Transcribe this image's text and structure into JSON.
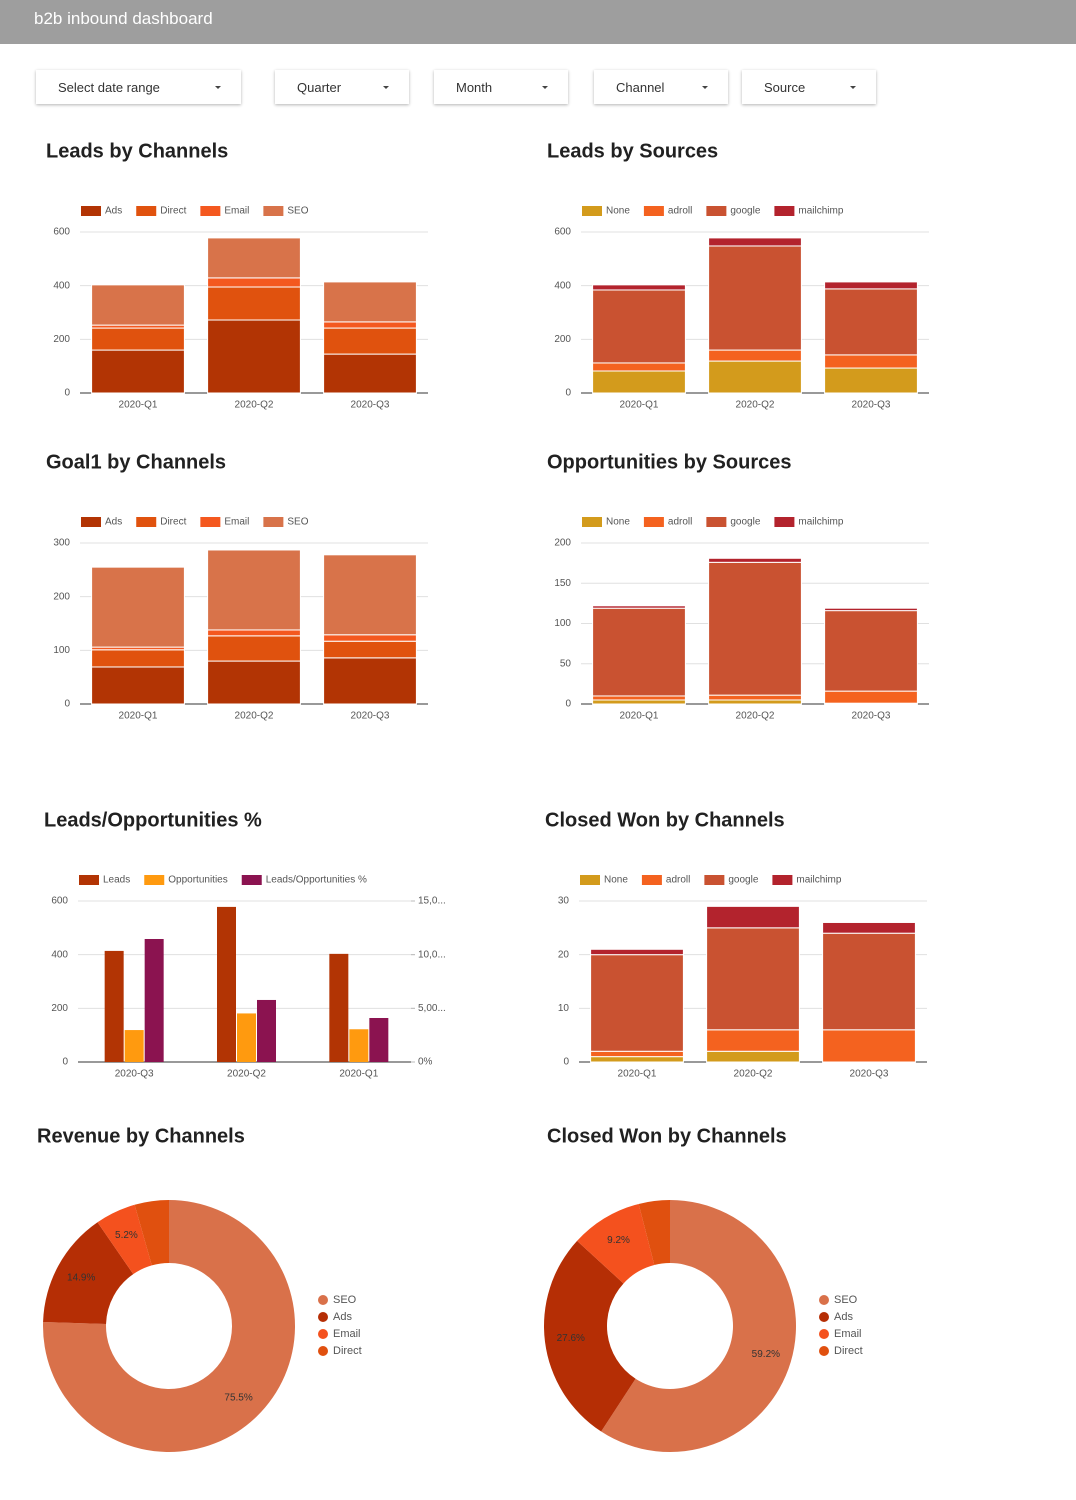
{
  "header": {
    "title": "b2b inbound dashboard"
  },
  "filters": [
    "Select date range",
    "Quarter",
    "Month",
    "Channel",
    "Source"
  ],
  "chart_data": [
    {
      "type": "bar",
      "stacked": true,
      "title": "Leads by Channels",
      "categories": [
        "2020-Q1",
        "2020-Q2",
        "2020-Q3"
      ],
      "series": [
        {
          "name": "Ads",
          "color": "#b23404",
          "values": [
            160,
            272,
            145
          ]
        },
        {
          "name": "Direct",
          "color": "#e0520e",
          "values": [
            82,
            123,
            97
          ]
        },
        {
          "name": "Email",
          "color": "#f4581f",
          "values": [
            11,
            34,
            23
          ]
        },
        {
          "name": "SEO",
          "color": "#d8734a",
          "values": [
            150,
            149,
            149
          ]
        }
      ],
      "ylim": [
        0,
        600
      ],
      "yticks": [
        0,
        200,
        400,
        600
      ],
      "grid": true
    },
    {
      "type": "bar",
      "stacked": true,
      "title": "Leads by Sources",
      "categories": [
        "2020-Q1",
        "2020-Q2",
        "2020-Q3"
      ],
      "series": [
        {
          "name": "None",
          "color": "#d39b1c",
          "values": [
            82,
            119,
            93
          ]
        },
        {
          "name": "adroll",
          "color": "#f4621f",
          "values": [
            30,
            41,
            49
          ]
        },
        {
          "name": "google",
          "color": "#c95231",
          "values": [
            272,
            388,
            246
          ]
        },
        {
          "name": "mailchimp",
          "color": "#b3232d",
          "values": [
            19,
            30,
            26
          ]
        }
      ],
      "ylim": [
        0,
        600
      ],
      "yticks": [
        0,
        200,
        400,
        600
      ],
      "grid": true
    },
    {
      "type": "bar",
      "stacked": true,
      "title": "Goal1 by Channels",
      "categories": [
        "2020-Q1",
        "2020-Q2",
        "2020-Q3"
      ],
      "series": [
        {
          "name": "Ads",
          "color": "#b23404",
          "values": [
            69,
            80,
            86
          ]
        },
        {
          "name": "Direct",
          "color": "#e0520e",
          "values": [
            32,
            47,
            31
          ]
        },
        {
          "name": "Email",
          "color": "#f4581f",
          "values": [
            5,
            11,
            12
          ]
        },
        {
          "name": "SEO",
          "color": "#d8734a",
          "values": [
            149,
            149,
            149
          ]
        }
      ],
      "ylim": [
        0,
        300
      ],
      "yticks": [
        0,
        100,
        200,
        300
      ],
      "grid": true
    },
    {
      "type": "bar",
      "stacked": true,
      "title": "Opportunities by Sources",
      "categories": [
        "2020-Q1",
        "2020-Q2",
        "2020-Q3"
      ],
      "series": [
        {
          "name": "None",
          "color": "#d39b1c",
          "values": [
            5,
            5,
            1
          ]
        },
        {
          "name": "adroll",
          "color": "#f4621f",
          "values": [
            5,
            6,
            15
          ]
        },
        {
          "name": "google",
          "color": "#c95231",
          "values": [
            109,
            165,
            100
          ]
        },
        {
          "name": "mailchimp",
          "color": "#b3232d",
          "values": [
            3,
            5,
            3
          ]
        }
      ],
      "ylim": [
        0,
        200
      ],
      "yticks": [
        0,
        50,
        100,
        150,
        200
      ],
      "grid": true
    },
    {
      "type": "bar",
      "stacked": false,
      "title": "Leads/Opportunities %",
      "categories": [
        "2020-Q3",
        "2020-Q2",
        "2020-Q1"
      ],
      "series": [
        {
          "name": "Leads",
          "color": "#b23404",
          "values": [
            414,
            578,
            403
          ]
        },
        {
          "name": "Opportunities",
          "color": "#ff9a0f",
          "values": [
            119,
            181,
            122
          ]
        },
        {
          "name": "Leads/Opportunities %",
          "color": "#8b1350",
          "values": [
            11460,
            5780,
            4100
          ],
          "axis": "y2"
        }
      ],
      "ylim": [
        0,
        600
      ],
      "yticks": [
        0,
        200,
        400,
        600
      ],
      "y2lim": [
        0,
        15000
      ],
      "y2ticks": [
        {
          "value": 0,
          "label": "0%"
        },
        {
          "value": 5000,
          "label": "5,00..."
        },
        {
          "value": 10000,
          "label": "10,0..."
        },
        {
          "value": 15000,
          "label": "15,0..."
        }
      ],
      "grid": true
    },
    {
      "type": "bar",
      "stacked": true,
      "title": "Closed Won by Channels",
      "categories": [
        "2020-Q1",
        "2020-Q2",
        "2020-Q3"
      ],
      "series": [
        {
          "name": "None",
          "color": "#d39b1c",
          "values": [
            1,
            2,
            0
          ]
        },
        {
          "name": "adroll",
          "color": "#f4621f",
          "values": [
            1,
            4,
            6
          ]
        },
        {
          "name": "google",
          "color": "#c95231",
          "values": [
            18,
            19,
            18
          ]
        },
        {
          "name": "mailchimp",
          "color": "#b3232d",
          "values": [
            1,
            4,
            2
          ]
        }
      ],
      "ylim": [
        0,
        30
      ],
      "yticks": [
        0,
        10,
        20,
        30
      ],
      "grid": true
    },
    {
      "type": "donut",
      "title": "Revenue by Channels",
      "categories": [
        "SEO",
        "Ads",
        "Email",
        "Direct"
      ],
      "values": [
        75.5,
        14.9,
        5.2,
        4.4
      ],
      "value_labels": [
        "75.5%",
        "14.9%",
        "5.2%",
        null
      ],
      "colors": [
        "#d9714a",
        "#b52e05",
        "#f4511e",
        "#e0500f"
      ]
    },
    {
      "type": "donut",
      "title": "Closed Won by Channels",
      "categories": [
        "SEO",
        "Ads",
        "Email",
        "Direct"
      ],
      "values": [
        59.2,
        27.6,
        9.2,
        4.0
      ],
      "value_labels": [
        "59.2%",
        "27.6%",
        "9.2%",
        null
      ],
      "colors": [
        "#d9714a",
        "#b52e05",
        "#f4511e",
        "#e0500f"
      ]
    }
  ]
}
